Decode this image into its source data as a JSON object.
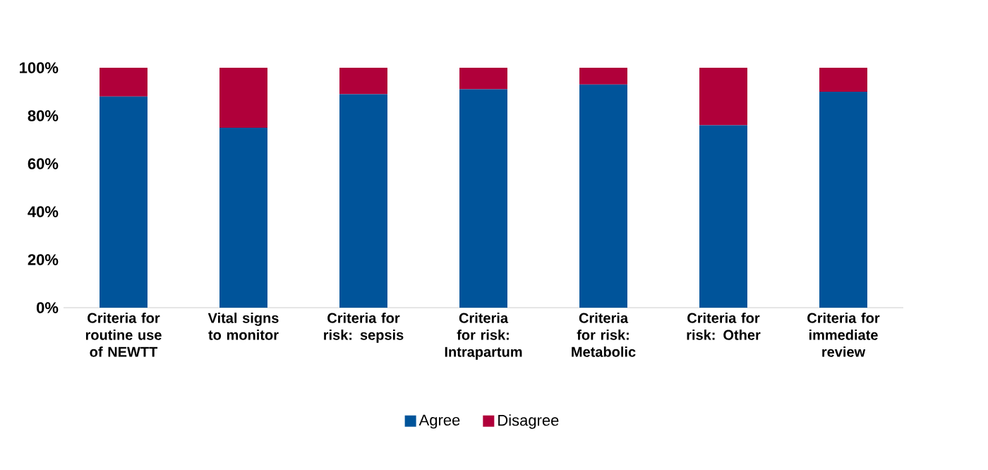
{
  "chart_data": {
    "type": "bar",
    "stacked": true,
    "categories": [
      "Criteria for routine use of NEWTT",
      "Vital signs to monitor",
      "Criteria for risk: sepsis",
      "Criteria for risk: Intrapartum",
      "Criteria for risk: Metabolic",
      "Criteria for risk: Other",
      "Criteria for immediate review"
    ],
    "series": [
      {
        "name": "Agree",
        "color": "#00549a",
        "values": [
          88,
          75,
          89,
          91,
          93,
          76,
          90
        ]
      },
      {
        "name": "Disagree",
        "color": "#b0003a",
        "values": [
          12,
          25,
          11,
          9,
          7,
          24,
          10
        ]
      }
    ],
    "ylim": [
      0,
      100
    ],
    "yticks": [
      {
        "value": 0,
        "label": "0%"
      },
      {
        "value": 20,
        "label": "20%"
      },
      {
        "value": 40,
        "label": "40%"
      },
      {
        "value": 60,
        "label": "60%"
      },
      {
        "value": 80,
        "label": "80%"
      },
      {
        "value": 100,
        "label": "100%"
      }
    ],
    "legend": "bottom"
  }
}
